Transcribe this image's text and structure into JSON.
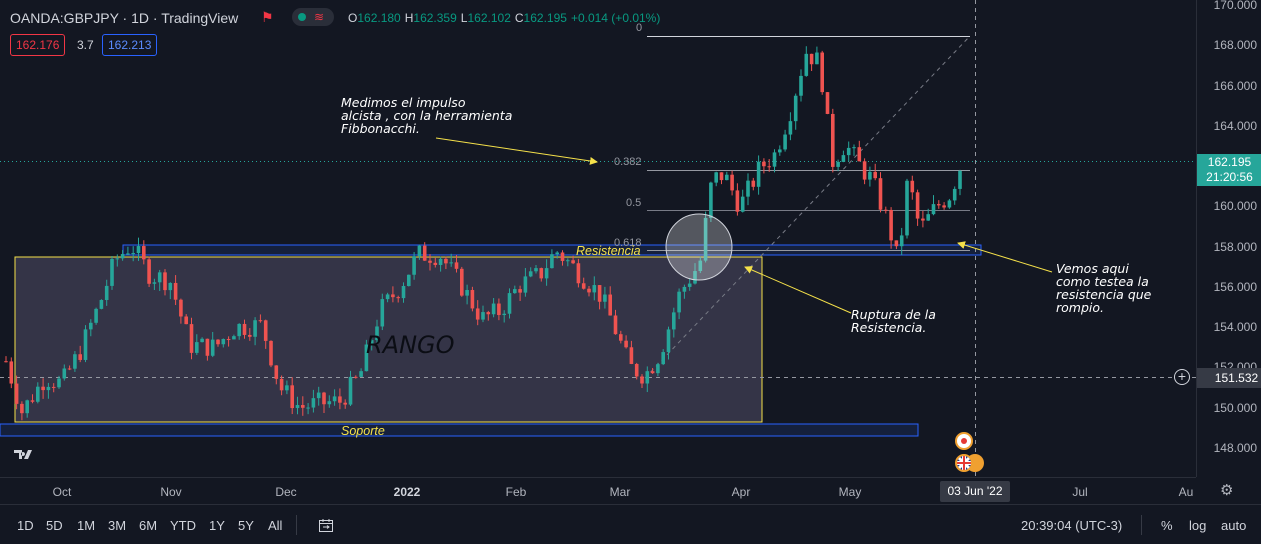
{
  "header": {
    "symbol": "OANDA:GBPJPY · 1D · TradingView",
    "ohlc": [
      {
        "k": "O",
        "v": "162.180"
      },
      {
        "k": "H",
        "v": "162.359"
      },
      {
        "k": "L",
        "v": "162.102"
      },
      {
        "k": "C",
        "v": "162.195"
      },
      {
        "k": "",
        "v": "+0.014 (+0.01%)"
      }
    ],
    "bid": "162.176",
    "spread": "3.7",
    "ask": "162.213"
  },
  "price_axis": {
    "ticks": [
      "170.000",
      "168.000",
      "166.000",
      "164.000",
      "162.000",
      "160.000",
      "158.000",
      "156.000",
      "154.000",
      "152.000",
      "150.000",
      "148.000"
    ],
    "last_price": "162.195",
    "countdown": "21:20:56",
    "crosshair_price": "151.532"
  },
  "time_axis": {
    "labels": [
      "Oct",
      "Nov",
      "Dec",
      "2022",
      "Feb",
      "Mar",
      "Apr",
      "May",
      "Jul",
      "Au"
    ],
    "crosshair_date": "03 Jun '22"
  },
  "fib_levels": [
    "0",
    "0.382",
    "0.5",
    "0.618"
  ],
  "annotations": {
    "fibo": "Medimos el impulso\nalcista , con la herramienta\nFibbonacchi.",
    "ruptura": "Ruptura de la\nResistencia.",
    "testea": "Vemos aqui\ncomo testea la\nresistencia que\nrompio.",
    "resistencia": "Resistencia",
    "soporte": "Soporte",
    "rango": "RANGO"
  },
  "bottom_bar": {
    "timeframes": [
      "1D",
      "5D",
      "1M",
      "3M",
      "6M",
      "YTD",
      "1Y",
      "5Y",
      "All"
    ],
    "clock": "20:39:04 (UTC-3)",
    "percent": "%",
    "log": "log",
    "auto": "auto"
  },
  "colors": {
    "up": "#26a69a",
    "down": "#ef5350",
    "zone_fill": "#3b3a4e",
    "zone_border": "#f5e14a",
    "band_border": "#2962ff",
    "arrow": "#f5e14a",
    "last_price_tag": "#26a69a",
    "bid": "#f23645",
    "ask": "#2962ff"
  },
  "icons": {
    "flag": "flag-icon",
    "tv_logo": "tradingview-logo-icon",
    "settings": "gear-icon",
    "date_range": "calendar-range-icon",
    "add": "plus-circle-icon",
    "event_jp": "japan-flag-event-icon",
    "event_gb": "uk-flag-event-icon"
  }
}
